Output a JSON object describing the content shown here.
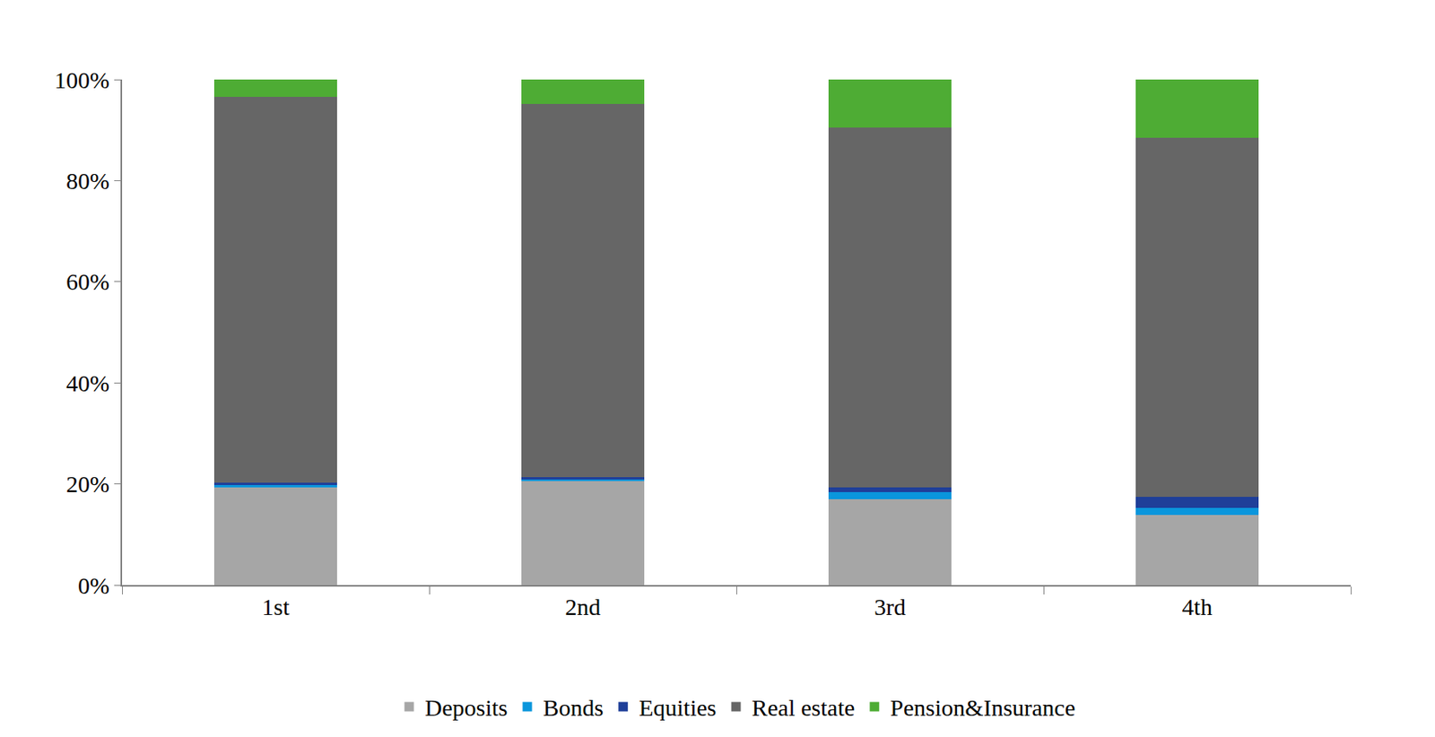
{
  "chart_data": {
    "type": "bar",
    "stacked": true,
    "categories": [
      "1st",
      "2nd",
      "3rd",
      "4th"
    ],
    "series": [
      {
        "name": "Deposits",
        "color": "#a6a6a6",
        "values": [
          19.3,
          20.5,
          17.0,
          13.9
        ]
      },
      {
        "name": "Bonds",
        "color": "#0a96dc",
        "values": [
          0.5,
          0.4,
          1.4,
          1.4
        ]
      },
      {
        "name": "Equities",
        "color": "#1f3f99",
        "values": [
          0.4,
          0.5,
          0.9,
          2.2
        ]
      },
      {
        "name": "Real estate",
        "color": "#666666",
        "values": [
          76.3,
          73.7,
          71.2,
          71.0
        ]
      },
      {
        "name": "Pension&Insurance",
        "color": "#4eac34",
        "values": [
          3.5,
          4.9,
          9.5,
          11.5
        ]
      }
    ],
    "ylim": [
      0,
      100
    ],
    "yticks": [
      {
        "value": 0,
        "label": "0%"
      },
      {
        "value": 20,
        "label": "20%"
      },
      {
        "value": 40,
        "label": "40%"
      },
      {
        "value": 60,
        "label": "60%"
      },
      {
        "value": 80,
        "label": "80%"
      },
      {
        "value": 100,
        "label": "100%"
      }
    ],
    "grid": false,
    "legend": "bottom"
  }
}
